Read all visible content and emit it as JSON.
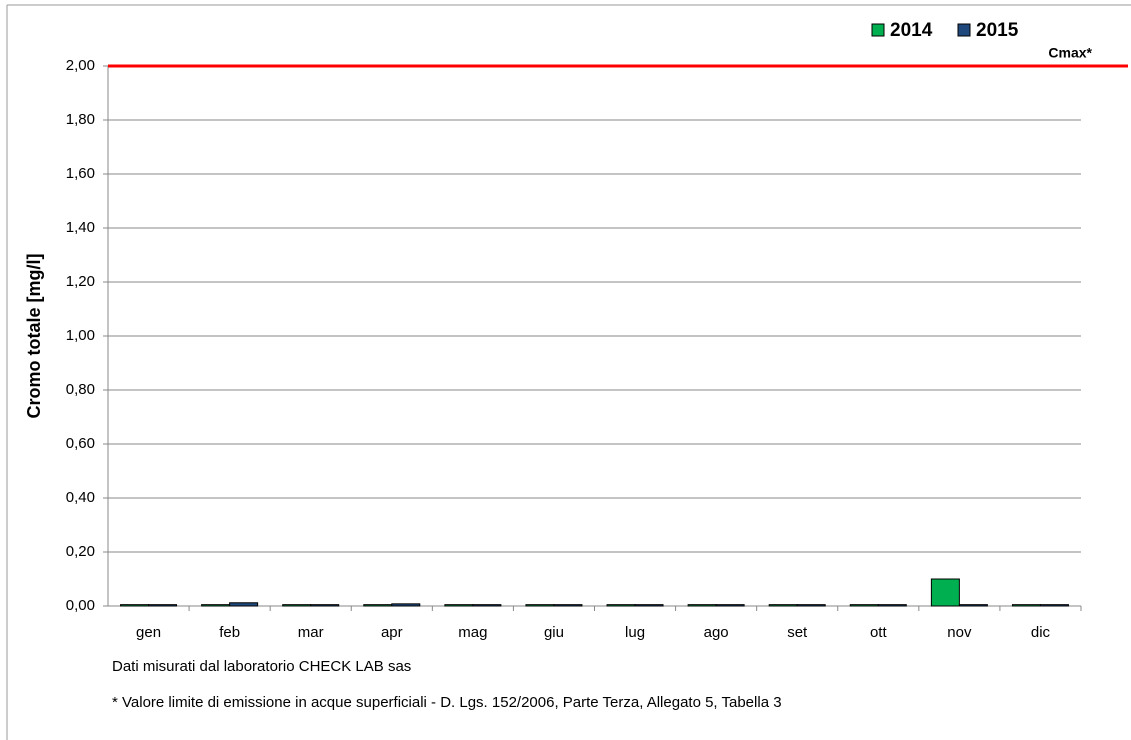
{
  "chart_data": {
    "type": "bar",
    "y_label": "Cromo totale [mg/l]",
    "categories": [
      "gen",
      "feb",
      "mar",
      "apr",
      "mag",
      "giu",
      "lug",
      "ago",
      "set",
      "ott",
      "nov",
      "dic"
    ],
    "series": [
      {
        "name": "2014",
        "color": "#00b050",
        "values": [
          0.005,
          0.005,
          0.005,
          0.005,
          0.005,
          0.005,
          0.005,
          0.005,
          0.005,
          0.005,
          0.1,
          0.005
        ]
      },
      {
        "name": "2015",
        "color": "#1f497d",
        "values": [
          0.005,
          0.012,
          0.005,
          0.008,
          0.005,
          0.005,
          0.005,
          0.005,
          0.005,
          0.005,
          0.005,
          0.005
        ]
      }
    ],
    "ylim": [
      0,
      2
    ],
    "yticks": [
      {
        "value": 0,
        "label": "0,00"
      },
      {
        "value": 0.2,
        "label": "0,20"
      },
      {
        "value": 0.4,
        "label": "0,40"
      },
      {
        "value": 0.6,
        "label": "0,60"
      },
      {
        "value": 0.8,
        "label": "0,80"
      },
      {
        "value": 1,
        "label": "1,00"
      },
      {
        "value": 1.2,
        "label": "1,20"
      },
      {
        "value": 1.4,
        "label": "1,40"
      },
      {
        "value": 1.6,
        "label": "1,60"
      },
      {
        "value": 1.8,
        "label": "1,80"
      },
      {
        "value": 2,
        "label": "2,00"
      }
    ],
    "grid": true,
    "threshold": {
      "value": 2,
      "label": "Cmax*",
      "color": "#ff0000"
    },
    "legend": "top-right",
    "notes": [
      "Dati misurati dal laboratorio CHECK LAB sas",
      "* Valore limite di emissione in acque superficiali - D. Lgs. 152/2006, Parte Terza, Allegato 5, Tabella 3"
    ]
  }
}
